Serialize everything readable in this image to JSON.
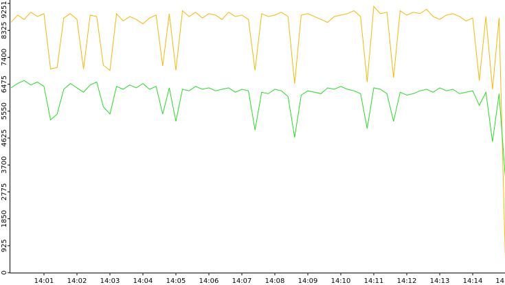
{
  "chart_data": {
    "type": "line",
    "x": [
      0,
      0.2,
      0.4,
      0.6,
      0.8,
      1,
      1.2,
      1.4,
      1.6,
      1.8,
      2,
      2.2,
      2.4,
      2.6,
      2.8,
      3,
      3.2,
      3.4,
      3.6,
      3.8,
      4,
      4.2,
      4.4,
      4.6,
      4.8,
      5,
      5.2,
      5.4,
      5.6,
      5.8,
      6,
      6.2,
      6.4,
      6.6,
      6.8,
      7,
      7.2,
      7.4,
      7.6,
      7.8,
      8,
      8.2,
      8.4,
      8.6,
      8.8,
      9,
      9.2,
      9.4,
      9.6,
      9.8,
      10,
      10.2,
      10.4,
      10.6,
      10.8,
      11,
      11.2,
      11.4,
      11.6,
      11.8,
      12,
      12.2,
      12.4,
      12.6,
      12.8,
      13,
      13.2,
      13.4,
      13.6,
      13.8,
      14,
      14.2,
      14.4,
      14.6,
      14.8,
      15
    ],
    "series": [
      {
        "color": "#f5b800",
        "values": [
          8600,
          8850,
          8700,
          8950,
          8800,
          8900,
          7000,
          7050,
          8750,
          8900,
          8700,
          7000,
          8850,
          8800,
          7130,
          6950,
          8900,
          8650,
          8800,
          8700,
          8550,
          8750,
          8850,
          7100,
          8900,
          6950,
          9000,
          8800,
          8950,
          8750,
          8900,
          8850,
          8700,
          8950,
          8800,
          8850,
          8700,
          6950,
          8900,
          8800,
          8850,
          8950,
          8800,
          6500,
          8850,
          8900,
          8800,
          8700,
          8600,
          8800,
          8850,
          8900,
          9000,
          8800,
          6550,
          9150,
          8900,
          8950,
          6700,
          9000,
          8850,
          8950,
          8900,
          9050,
          8800,
          8700,
          8850,
          8900,
          8800,
          8650,
          8750,
          6600,
          8800,
          6300,
          8750,
          0
        ]
      },
      {
        "color": "#22dd22",
        "values": [
          6350,
          6500,
          6600,
          6450,
          6550,
          6400,
          5250,
          5450,
          6300,
          6500,
          6350,
          6200,
          6450,
          6550,
          5700,
          5450,
          6400,
          6300,
          6450,
          6350,
          6500,
          6300,
          6400,
          5450,
          6350,
          5200,
          6300,
          6250,
          6400,
          6300,
          6350,
          6250,
          6300,
          6350,
          6200,
          6300,
          6250,
          4900,
          6200,
          6150,
          6300,
          6250,
          6050,
          4650,
          6100,
          6250,
          6200,
          6150,
          6350,
          6300,
          6400,
          6300,
          6250,
          6150,
          4950,
          6350,
          6300,
          6150,
          5200,
          6200,
          6100,
          6150,
          6250,
          6300,
          6200,
          6350,
          6250,
          6300,
          6150,
          6200,
          6250,
          5750,
          6200,
          4500,
          6150,
          3100
        ]
      }
    ],
    "xlim": [
      0,
      15
    ],
    "ylim": [
      0,
      9251
    ],
    "xticks": [
      {
        "value": 1,
        "label": "14:01"
      },
      {
        "value": 2,
        "label": "14:02"
      },
      {
        "value": 3,
        "label": "14:03"
      },
      {
        "value": 4,
        "label": "14:04"
      },
      {
        "value": 5,
        "label": "14:05"
      },
      {
        "value": 6,
        "label": "14:06"
      },
      {
        "value": 7,
        "label": "14:07"
      },
      {
        "value": 8,
        "label": "14:08"
      },
      {
        "value": 9,
        "label": "14:09"
      },
      {
        "value": 10,
        "label": "14:10"
      },
      {
        "value": 11,
        "label": "14:11"
      },
      {
        "value": 12,
        "label": "14:12"
      },
      {
        "value": 13,
        "label": "14:13"
      },
      {
        "value": 14,
        "label": "14:14"
      },
      {
        "value": 15,
        "label": "14"
      }
    ],
    "yticks": [
      0,
      925,
      1850,
      2775,
      3700,
      4625,
      5550,
      6475,
      7400,
      8325,
      9251
    ]
  }
}
